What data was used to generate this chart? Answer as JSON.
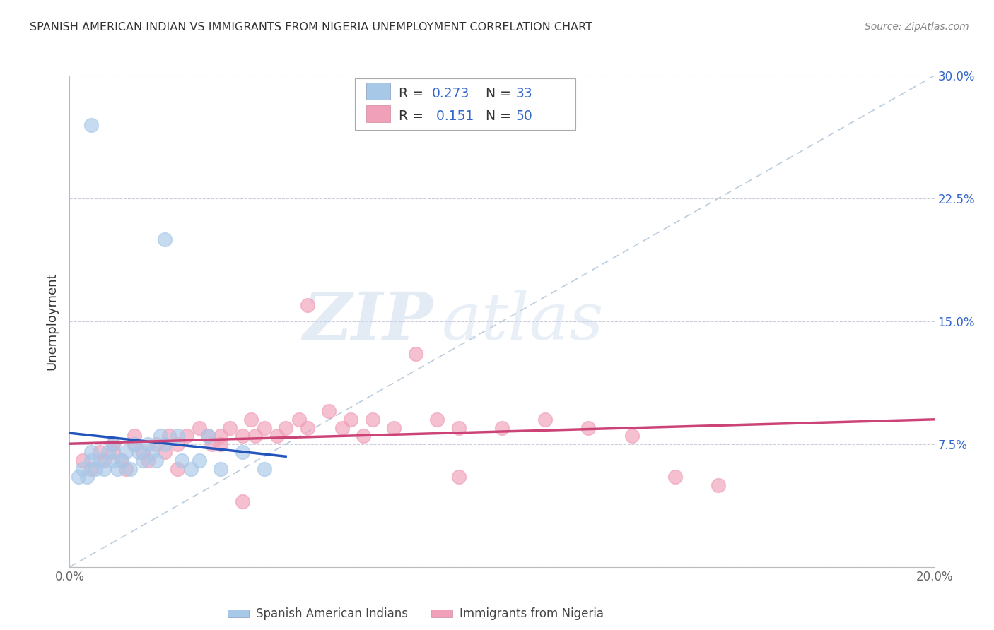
{
  "title": "SPANISH AMERICAN INDIAN VS IMMIGRANTS FROM NIGERIA UNEMPLOYMENT CORRELATION CHART",
  "source": "Source: ZipAtlas.com",
  "ylabel": "Unemployment",
  "xlim": [
    0.0,
    0.2
  ],
  "ylim": [
    0.0,
    0.3
  ],
  "color_blue": "#a8c8e8",
  "color_pink": "#f0a0b8",
  "color_trend_blue": "#2255bb",
  "color_trend_pink": "#cc4477",
  "color_diag": "#bbccdd",
  "label1": "Spanish American Indians",
  "label2": "Immigrants from Nigeria",
  "watermark_zip": "ZIP",
  "watermark_atlas": "atlas",
  "background_color": "#ffffff",
  "grid_color": "#ccccdd",
  "blue_x": [
    0.002,
    0.003,
    0.004,
    0.005,
    0.005,
    0.006,
    0.007,
    0.008,
    0.009,
    0.01,
    0.01,
    0.011,
    0.012,
    0.013,
    0.014,
    0.015,
    0.016,
    0.017,
    0.018,
    0.019,
    0.02,
    0.021,
    0.022,
    0.025,
    0.026,
    0.028,
    0.03,
    0.032,
    0.035,
    0.04,
    0.045,
    0.022,
    0.005
  ],
  "blue_y": [
    0.055,
    0.06,
    0.055,
    0.065,
    0.07,
    0.06,
    0.065,
    0.06,
    0.07,
    0.065,
    0.075,
    0.06,
    0.065,
    0.07,
    0.06,
    0.075,
    0.07,
    0.065,
    0.075,
    0.07,
    0.065,
    0.08,
    0.075,
    0.08,
    0.065,
    0.06,
    0.065,
    0.08,
    0.06,
    0.07,
    0.06,
    0.2,
    0.27
  ],
  "pink_x": [
    0.003,
    0.005,
    0.007,
    0.008,
    0.01,
    0.01,
    0.012,
    0.013,
    0.015,
    0.015,
    0.017,
    0.018,
    0.02,
    0.022,
    0.023,
    0.025,
    0.027,
    0.03,
    0.032,
    0.033,
    0.035,
    0.037,
    0.04,
    0.042,
    0.043,
    0.045,
    0.048,
    0.05,
    0.053,
    0.055,
    0.06,
    0.063,
    0.068,
    0.07,
    0.075,
    0.08,
    0.085,
    0.09,
    0.1,
    0.11,
    0.12,
    0.13,
    0.14,
    0.15,
    0.055,
    0.065,
    0.04,
    0.035,
    0.025,
    0.09
  ],
  "pink_y": [
    0.065,
    0.06,
    0.07,
    0.065,
    0.07,
    0.075,
    0.065,
    0.06,
    0.075,
    0.08,
    0.07,
    0.065,
    0.075,
    0.07,
    0.08,
    0.075,
    0.08,
    0.085,
    0.08,
    0.075,
    0.08,
    0.085,
    0.08,
    0.09,
    0.08,
    0.085,
    0.08,
    0.085,
    0.09,
    0.085,
    0.095,
    0.085,
    0.08,
    0.09,
    0.085,
    0.13,
    0.09,
    0.085,
    0.085,
    0.09,
    0.085,
    0.08,
    0.055,
    0.05,
    0.16,
    0.09,
    0.04,
    0.075,
    0.06,
    0.055
  ]
}
